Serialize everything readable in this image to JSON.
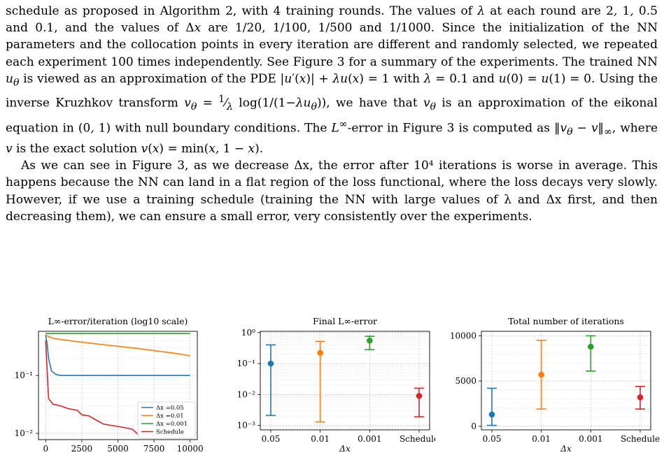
{
  "text": {
    "paragraph1": "schedule as proposed in Algorithm 2, with 4 training rounds. The values of λ at each round are 2, 1, 0.5 and 0.1, and the values of Δx are 1/20, 1/100, 1/500 and 1/1000. Since the initialization of the NN parameters and the collocation points in every iteration are different and randomly selected, we repeated each experiment 100 times independently. See Figure 3 for a summary of the experiments. The trained NN u_θ is viewed as an approximation of the PDE |u′(x)| + λu(x) = 1 with λ = 0.1 and u(0) = u(1) = 0. Using the inverse Kruzhkov transform v_θ = (1/λ) log(1/(1−λu_θ)), we have that v_θ is an approximation of the eikonal equation in (0, 1) with null boundary conditions. The L∞-error in Figure 3 is computed as ‖v_θ − v‖∞, where v is the exact solution v(x) = min(x, 1 − x).",
    "paragraph2": "As we can see in Figure 3, as we decrease Δx, the error after 10⁴ iterations is worse in average. This happens because the NN can land in a flat region of the loss functional, where the loss decays very slowly. However, if we use a training schedule (training the NN with large values of λ and Δx first, and then decreasing them), we can ensure a small error, very consistently over the experiments."
  },
  "colors": {
    "blue": "#1f77b4",
    "orange": "#ff7f0e",
    "green": "#2ca02c",
    "red": "#d62728"
  },
  "chart_data": [
    {
      "type": "line",
      "title": "L∞-error/iteration (log10 scale)",
      "xlabel": "",
      "ylabel": "",
      "y_scale": "log10",
      "xlim": [
        -500,
        10500
      ],
      "ylim": [
        0.0078,
        0.58
      ],
      "x_ticks": [
        "0",
        "2500",
        "5000",
        "7500",
        "10000"
      ],
      "y_ticks": [
        "10⁻¹",
        "10⁻²"
      ],
      "grid": true,
      "legend_position": "lower-right",
      "series": [
        {
          "name": "Δx =0.05",
          "x": [
            0,
            100,
            200,
            400,
            700,
            1000,
            2000,
            5000,
            10000
          ],
          "y": [
            0.5,
            0.35,
            0.2,
            0.12,
            0.105,
            0.1,
            0.1,
            0.1,
            0.1
          ]
        },
        {
          "name": "Δx =0.01",
          "x": [
            0,
            200,
            500,
            1000,
            2000,
            4000,
            6000,
            8000,
            9000,
            10000
          ],
          "y": [
            0.5,
            0.47,
            0.44,
            0.42,
            0.39,
            0.34,
            0.3,
            0.26,
            0.24,
            0.22
          ]
        },
        {
          "name": "Δx =0.001",
          "x": [
            0,
            2500,
            5000,
            7500,
            10000
          ],
          "y": [
            0.53,
            0.53,
            0.53,
            0.53,
            0.53
          ]
        },
        {
          "name": "Schedule",
          "x": [
            0,
            100,
            200,
            500,
            1000,
            1500,
            2200,
            2500,
            3000,
            3500,
            4000,
            4500,
            5000,
            5500,
            6000,
            6500,
            7000
          ],
          "y": [
            0.4,
            0.12,
            0.04,
            0.032,
            0.03,
            0.027,
            0.025,
            0.021,
            0.02,
            0.017,
            0.0145,
            0.0138,
            0.0132,
            0.0125,
            0.0118,
            0.0092,
            0.0083
          ]
        }
      ]
    },
    {
      "type": "scatter",
      "title": "Final L∞-error",
      "xlabel": "Δx",
      "ylabel": "",
      "y_scale": "log10",
      "categories": [
        "0.05",
        "0.01",
        "0.001",
        "Schedule"
      ],
      "ylim": [
        0.00072,
        1.1
      ],
      "y_ticks": [
        "10⁰",
        "10⁻¹",
        "10⁻²",
        "10⁻³"
      ],
      "grid": true,
      "values": [
        0.1,
        0.22,
        0.55,
        0.009
      ],
      "err_low": [
        0.0021,
        0.0013,
        0.28,
        0.0019
      ],
      "err_high": [
        0.4,
        0.52,
        0.76,
        0.016
      ]
    },
    {
      "type": "scatter",
      "title": "Total number of iterations",
      "xlabel": "Δx",
      "ylabel": "",
      "categories": [
        "0.05",
        "0.01",
        "0.001",
        "Schedule"
      ],
      "ylim": [
        -400,
        10500
      ],
      "y_ticks": [
        "0",
        "5000",
        "10000"
      ],
      "grid": true,
      "values": [
        1300,
        5700,
        8800,
        3200
      ],
      "err_low": [
        100,
        1900,
        6100,
        1900
      ],
      "err_high": [
        4200,
        9500,
        10000,
        4400
      ]
    }
  ]
}
